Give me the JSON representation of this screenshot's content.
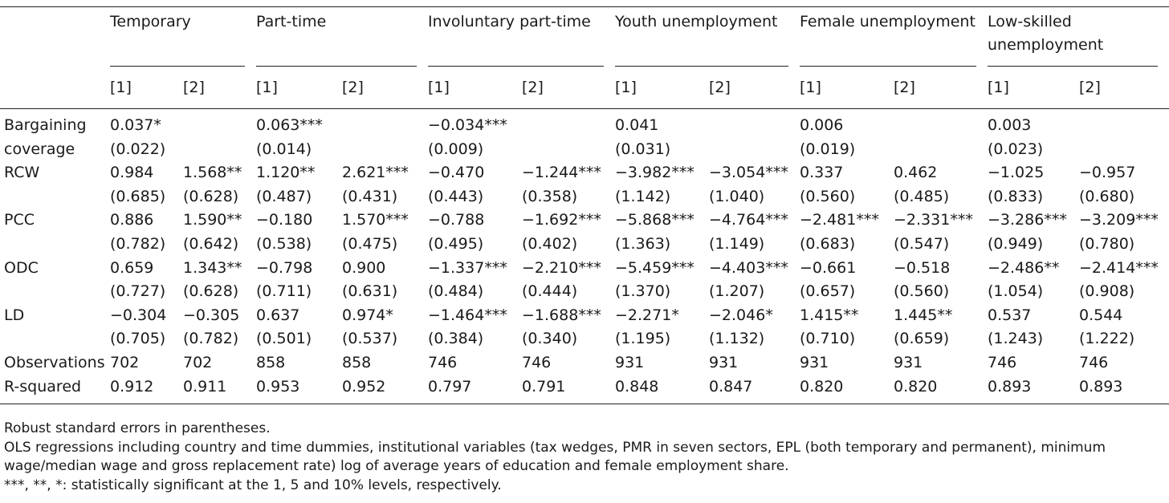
{
  "groups": [
    {
      "label": "Temporary"
    },
    {
      "label": "Part-time"
    },
    {
      "label": "Involuntary part-time"
    },
    {
      "label": "Youth unemployment"
    },
    {
      "label": "Female unemployment"
    },
    {
      "label": "Low-skilled unemployment"
    }
  ],
  "subheads": [
    "[1]",
    "[2]"
  ],
  "rows": [
    {
      "name": "Bargaining",
      "cells": [
        "0.037*",
        "",
        "0.063***",
        "",
        "−0.034***",
        "",
        "0.041",
        "",
        "0.006",
        "",
        "0.003",
        ""
      ]
    },
    {
      "name": "coverage",
      "cells": [
        "(0.022)",
        "",
        "(0.014)",
        "",
        "(0.009)",
        "",
        "(0.031)",
        "",
        "(0.019)",
        "",
        "(0.023)",
        ""
      ]
    },
    {
      "name": "RCW",
      "cells": [
        "0.984",
        "1.568**",
        "1.120**",
        "2.621***",
        "−0.470",
        "−1.244***",
        "−3.982***",
        "−3.054***",
        "0.337",
        "0.462",
        "−1.025",
        "−0.957"
      ]
    },
    {
      "name": "",
      "cells": [
        "(0.685)",
        "(0.628)",
        "(0.487)",
        "(0.431)",
        "(0.443)",
        "(0.358)",
        "(1.142)",
        "(1.040)",
        "(0.560)",
        "(0.485)",
        "(0.833)",
        "(0.680)"
      ]
    },
    {
      "name": "PCC",
      "cells": [
        "0.886",
        "1.590**",
        "−0.180",
        "1.570***",
        "−0.788",
        "−1.692***",
        "−5.868***",
        "−4.764***",
        "−2.481***",
        "−2.331***",
        "−3.286***",
        "−3.209***"
      ]
    },
    {
      "name": "",
      "cells": [
        "(0.782)",
        "(0.642)",
        "(0.538)",
        "(0.475)",
        "(0.495)",
        "(0.402)",
        "(1.363)",
        "(1.149)",
        "(0.683)",
        "(0.547)",
        "(0.949)",
        "(0.780)"
      ]
    },
    {
      "name": "ODC",
      "cells": [
        "0.659",
        "1.343**",
        "−0.798",
        "0.900",
        "−1.337***",
        "−2.210***",
        "−5.459***",
        "−4.403***",
        "−0.661",
        "−0.518",
        "−2.486**",
        "−2.414***"
      ]
    },
    {
      "name": "",
      "cells": [
        "(0.727)",
        "(0.628)",
        "(0.711)",
        "(0.631)",
        "(0.484)",
        "(0.444)",
        "(1.370)",
        "(1.207)",
        "(0.657)",
        "(0.560)",
        "(1.054)",
        "(0.908)"
      ]
    },
    {
      "name": "LD",
      "cells": [
        "−0.304",
        "−0.305",
        "0.637",
        "0.974*",
        "−1.464***",
        "−1.688***",
        "−2.271*",
        "−2.046*",
        "1.415**",
        "1.445**",
        "0.537",
        "0.544"
      ]
    },
    {
      "name": "",
      "cells": [
        "(0.705)",
        "(0.782)",
        "(0.501)",
        "(0.537)",
        "(0.384)",
        "(0.340)",
        "(1.195)",
        "(1.132)",
        "(0.710)",
        "(0.659)",
        "(1.243)",
        "(1.222)"
      ]
    },
    {
      "name": "Observations",
      "cells": [
        "702",
        "702",
        "858",
        "858",
        "746",
        "746",
        "931",
        "931",
        "931",
        "931",
        "746",
        "746"
      ]
    },
    {
      "name": "R-squared",
      "cells": [
        "0.912",
        "0.911",
        "0.953",
        "0.952",
        "0.797",
        "0.791",
        "0.848",
        "0.847",
        "0.820",
        "0.820",
        "0.893",
        "0.893"
      ]
    }
  ],
  "notes": [
    "Robust standard errors in parentheses.",
    "OLS regressions including country and time dummies, institutional variables (tax wedges, PMR in seven sectors, EPL (both temporary and permanent), minimum wage/median wage and gross replacement rate) log of average years of education and female employment share.",
    "***, **, *: statistically significant at the 1, 5 and 10% levels, respectively."
  ]
}
